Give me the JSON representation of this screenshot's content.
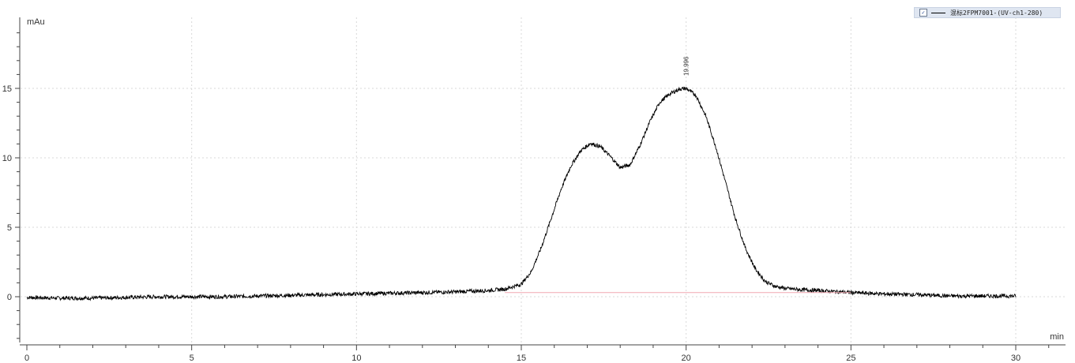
{
  "legend": {
    "checked": true,
    "label": "混标2FPM7001-(UV-ch1-280)",
    "checkbox_glyph": "✓"
  },
  "chart_data": {
    "type": "line",
    "xlabel": "min",
    "ylabel": "mAu",
    "xlim": [
      0,
      31.5
    ],
    "ylim": [
      -3.4,
      20.3
    ],
    "x_ticks": [
      0,
      5,
      10,
      15,
      20,
      25,
      30
    ],
    "y_ticks": [
      0,
      5,
      10,
      15
    ],
    "grid": true,
    "series": [
      {
        "name": "混标2FPM7001-(UV-ch1-280)",
        "color": "#000000",
        "x": [
          0,
          1,
          2,
          3,
          4,
          5,
          6,
          7,
          8,
          9,
          10,
          11,
          12,
          13,
          14,
          14.5,
          15,
          15.3,
          15.6,
          15.9,
          16.2,
          16.5,
          16.8,
          17.1,
          17.4,
          17.7,
          18.0,
          18.3,
          18.6,
          18.9,
          19.2,
          19.5,
          19.8,
          20.0,
          20.3,
          20.6,
          20.9,
          21.2,
          21.5,
          21.8,
          22.1,
          22.4,
          22.7,
          23.0,
          23.5,
          24,
          25,
          26,
          27,
          28,
          29,
          30
        ],
        "y": [
          -0.05,
          -0.1,
          -0.1,
          -0.05,
          0,
          0,
          0,
          0.05,
          0.1,
          0.15,
          0.2,
          0.25,
          0.3,
          0.35,
          0.45,
          0.55,
          0.9,
          1.8,
          3.5,
          5.6,
          7.7,
          9.4,
          10.5,
          11.05,
          10.8,
          10.1,
          9.3,
          9.5,
          10.9,
          12.6,
          14.0,
          14.6,
          14.95,
          15.0,
          14.5,
          13.0,
          10.8,
          8.2,
          5.6,
          3.5,
          2.0,
          1.1,
          0.75,
          0.6,
          0.5,
          0.45,
          0.3,
          0.2,
          0.15,
          0.05,
          0.05,
          0.05
        ]
      },
      {
        "name": "",
        "color": "#f0a7b1",
        "x": [
          14.5,
          25
        ],
        "y": [
          0.3,
          0.3
        ]
      }
    ],
    "annotations": [
      {
        "x": 19.996,
        "y": 15.0,
        "text": "19.996"
      }
    ]
  }
}
